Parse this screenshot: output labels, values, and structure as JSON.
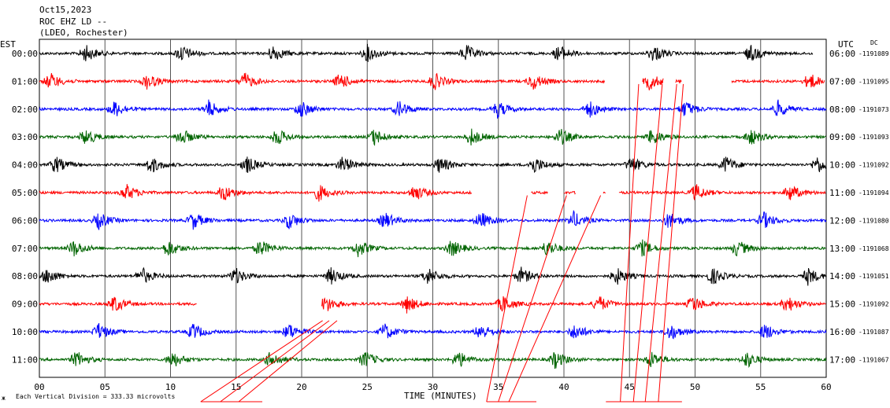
{
  "header": {
    "date": "Oct15,2023",
    "station": "ROC EHZ LD --",
    "network": "(LDEO, Rochester)"
  },
  "left_zone": "EST",
  "right_zone": "UTC",
  "dc_label": "DC",
  "footer": {
    "mark": "ж",
    "scale_note": "Each Vertical Division =  333.33 microvolts"
  },
  "chart_data": {
    "type": "line",
    "title": "",
    "xlabel": "TIME (MINUTES)",
    "xlim": [
      0,
      60
    ],
    "x_ticks": [
      "00",
      "05",
      "10",
      "15",
      "20",
      "25",
      "30",
      "35",
      "40",
      "45",
      "50",
      "55",
      "60"
    ],
    "grid": "vertical lines every 5 minutes",
    "series_colors": [
      "#000000",
      "#ff0000",
      "#0000ff",
      "#006400"
    ],
    "rows": [
      {
        "est": "00:00",
        "utc": "06:00",
        "dc": "-1191089",
        "color": "#000000",
        "segments": [
          [
            0,
            59
          ]
        ],
        "bursts": [
          3.5,
          10.8,
          17.8,
          25,
          32.5,
          39.6,
          46.8,
          54.2
        ]
      },
      {
        "est": "01:00",
        "utc": "07:00",
        "dc": "-1191095",
        "color": "#ff0000",
        "segments": [
          [
            0,
            43.1
          ],
          [
            46,
            47.6
          ],
          [
            48.5,
            49
          ],
          [
            52.8,
            59.9
          ]
        ],
        "bursts": [
          0.8,
          8.2,
          15.6,
          22.9,
          30.1,
          37.6,
          46.5,
          58.7
        ]
      },
      {
        "est": "02:00",
        "utc": "08:00",
        "dc": "-1191073",
        "color": "#0000ff",
        "segments": [
          [
            0,
            60
          ]
        ],
        "bursts": [
          5.7,
          12.9,
          19.9,
          27.4,
          34.9,
          41.9,
          49.2,
          56.3
        ]
      },
      {
        "est": "03:00",
        "utc": "09:00",
        "dc": "-1191093",
        "color": "#006400",
        "segments": [
          [
            0,
            60
          ]
        ],
        "bursts": [
          3.5,
          10.8,
          18.1,
          25.5,
          32.9,
          39.7,
          46.7,
          54.2
        ]
      },
      {
        "est": "04:00",
        "utc": "10:00",
        "dc": "-1191092",
        "color": "#000000",
        "segments": [
          [
            0,
            60
          ]
        ],
        "bursts": [
          1.2,
          8.5,
          15.8,
          23.1,
          30.5,
          37.7,
          45.1,
          52.3,
          59.3
        ]
      },
      {
        "est": "05:00",
        "utc": "11:00",
        "dc": "-1191094",
        "color": "#ff0000",
        "segments": [
          [
            0,
            33
          ],
          [
            37.5,
            38.8
          ],
          [
            40,
            40.9
          ],
          [
            43,
            43.2
          ],
          [
            44.2,
            60
          ]
        ],
        "bursts": [
          6.6,
          14,
          21.3,
          28.6,
          50,
          57.2
        ]
      },
      {
        "est": "06:00",
        "utc": "12:00",
        "dc": "-1191080",
        "color": "#0000ff",
        "segments": [
          [
            0,
            60
          ]
        ],
        "bursts": [
          4.5,
          11.7,
          19,
          26.3,
          33.6,
          40.7,
          48,
          55.2
        ]
      },
      {
        "est": "07:00",
        "utc": "13:00",
        "dc": "-1191068",
        "color": "#006400",
        "segments": [
          [
            0,
            60
          ]
        ],
        "bursts": [
          2.6,
          9.8,
          16.8,
          24.3,
          31.4,
          38.7,
          45.9,
          53.2
        ]
      },
      {
        "est": "08:00",
        "utc": "14:00",
        "dc": "-1191051",
        "color": "#000000",
        "segments": [
          [
            0,
            60
          ]
        ],
        "bursts": [
          0.6,
          7.8,
          14.9,
          22.2,
          29.6,
          36.7,
          44,
          51.3,
          58.6
        ]
      },
      {
        "est": "09:00",
        "utc": "15:00",
        "dc": "-1191092",
        "color": "#ff0000",
        "segments": [
          [
            0,
            12
          ],
          [
            21.5,
            60
          ]
        ],
        "bursts": [
          5.7,
          21.8,
          28,
          35.3,
          42.6,
          49.8,
          57
        ]
      },
      {
        "est": "10:00",
        "utc": "16:00",
        "dc": "-1191087",
        "color": "#0000ff",
        "segments": [
          [
            0,
            60
          ]
        ],
        "bursts": [
          4.5,
          11.7,
          19,
          26.3,
          33.6,
          40.8,
          48.1,
          55.3
        ]
      },
      {
        "est": "11:00",
        "utc": "17:00",
        "dc": "-1191067",
        "color": "#006400",
        "segments": [
          [
            0,
            60
          ]
        ],
        "bursts": [
          2.8,
          10.1,
          17.6,
          24.8,
          31.9,
          39.3,
          46.6,
          53.9
        ]
      }
    ],
    "clip_lines": [
      {
        "from": [
          12.3,
          11.6
        ],
        "to": [
          21.6,
          9.6
        ]
      },
      {
        "from": [
          13.8,
          11.6
        ],
        "to": [
          22.1,
          9.6
        ]
      },
      {
        "from": [
          15.2,
          11.6
        ],
        "to": [
          22.7,
          9.6
        ]
      },
      {
        "from": [
          34.1,
          11.6
        ],
        "to": [
          37.2,
          5.1
        ]
      },
      {
        "from": [
          35,
          11.6
        ],
        "to": [
          40.2,
          5.1
        ]
      },
      {
        "from": [
          35.8,
          11.6
        ],
        "to": [
          42.8,
          5.1
        ]
      },
      {
        "from": [
          44.3,
          11.6
        ],
        "to": [
          45.7,
          1.1
        ]
      },
      {
        "from": [
          45.3,
          11.6
        ],
        "to": [
          47.5,
          1.1
        ]
      },
      {
        "from": [
          46.2,
          11.6
        ],
        "to": [
          48.6,
          1.1
        ]
      },
      {
        "from": [
          47.2,
          11.6
        ],
        "to": [
          49.1,
          1.1
        ]
      }
    ]
  }
}
